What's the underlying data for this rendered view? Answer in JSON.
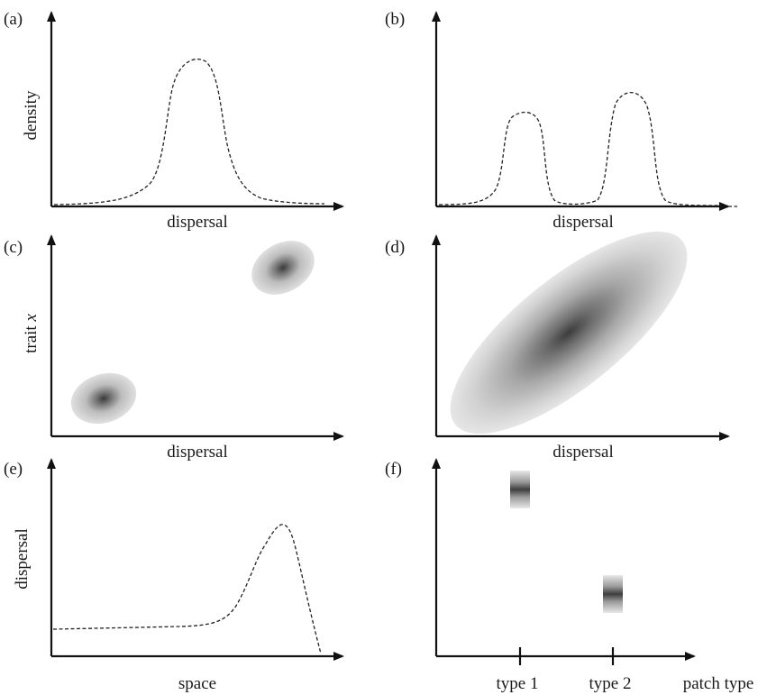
{
  "panels": {
    "a": {
      "label": "(a)",
      "ylabel": "density",
      "xlabel": "dispersal"
    },
    "b": {
      "label": "(b)",
      "xlabel": "dispersal"
    },
    "c": {
      "label": "(c)",
      "ylabel_main": "trait ",
      "ylabel_var": "x",
      "xlabel": "dispersal"
    },
    "d": {
      "label": "(d)",
      "xlabel": "dispersal"
    },
    "e": {
      "label": "(e)",
      "ylabel": "dispersal",
      "xlabel": "space"
    },
    "f": {
      "label": "(f)",
      "xlabel": "patch type",
      "ticks": [
        "type 1",
        "type 2"
      ]
    }
  },
  "colors": {
    "ink": "#111111",
    "blob_dark": "#4a4a4a",
    "blob_light": "#e2e2e2"
  }
}
